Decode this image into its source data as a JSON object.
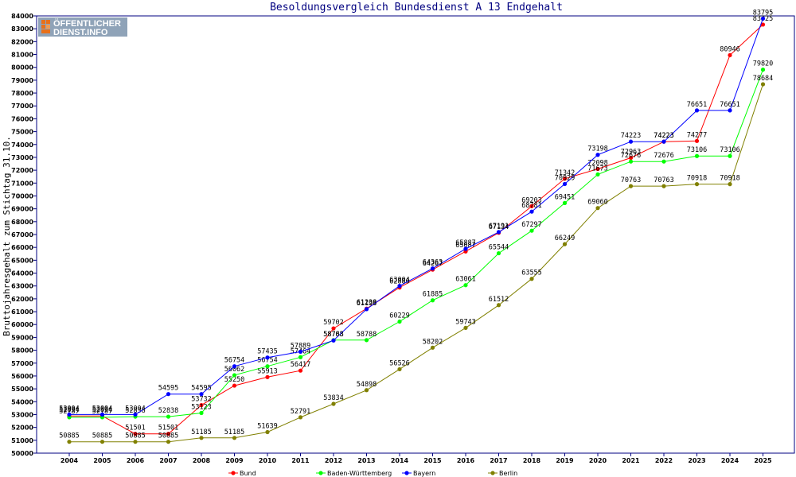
{
  "logo": {
    "line1": "ÖFFENTLICHER",
    "line2": "DIENST.INFO"
  },
  "chart_data": {
    "type": "line",
    "title": "Besoldungsvergleich Bundesdienst A 13 Endgehalt",
    "xlabel": "",
    "ylabel": "Bruttojahresgehalt zum Stichtag 31.10.",
    "categories": [
      "2004",
      "2005",
      "2006",
      "2007",
      "2008",
      "2009",
      "2010",
      "2011",
      "2012",
      "2013",
      "2014",
      "2015",
      "2016",
      "2017",
      "2018",
      "2019",
      "2020",
      "2021",
      "2022",
      "2023",
      "2024",
      "2025"
    ],
    "ylim": [
      50000,
      84000
    ],
    "ytick_step": 1000,
    "grid": false,
    "legend_position": "bottom",
    "series": [
      {
        "name": "Bund",
        "color": "#ff0000",
        "values": [
          52894,
          52894,
          51501,
          51501,
          53732,
          55250,
          55913,
          56417,
          59702,
          61238,
          62880,
          64267,
          65687,
          67134,
          69203,
          71342,
          72098,
          72963,
          74223,
          74277,
          80946,
          83325
        ]
      },
      {
        "name": "Baden-Württemberg",
        "color": "#00ff00",
        "values": [
          52787,
          52787,
          52838,
          52838,
          53123,
          56062,
          56754,
          57464,
          58788,
          58788,
          60229,
          61885,
          63061,
          65544,
          67297,
          69451,
          71673,
          72676,
          72676,
          73106,
          73106,
          79820
        ]
      },
      {
        "name": "Bayern",
        "color": "#0000ff",
        "values": [
          53004,
          53004,
          53004,
          54595,
          54595,
          56754,
          57435,
          57889,
          58763,
          61198,
          63004,
          64363,
          65887,
          67191,
          68781,
          70929,
          73198,
          74223,
          74223,
          76651,
          76651,
          83795
        ]
      },
      {
        "name": "Berlin",
        "color": "#808000",
        "values": [
          50885,
          50885,
          50885,
          50885,
          51185,
          51185,
          51639,
          52791,
          53834,
          54898,
          56526,
          58202,
          59743,
          61512,
          63555,
          66249,
          69060,
          70763,
          70763,
          70918,
          70918,
          78684
        ]
      }
    ]
  }
}
